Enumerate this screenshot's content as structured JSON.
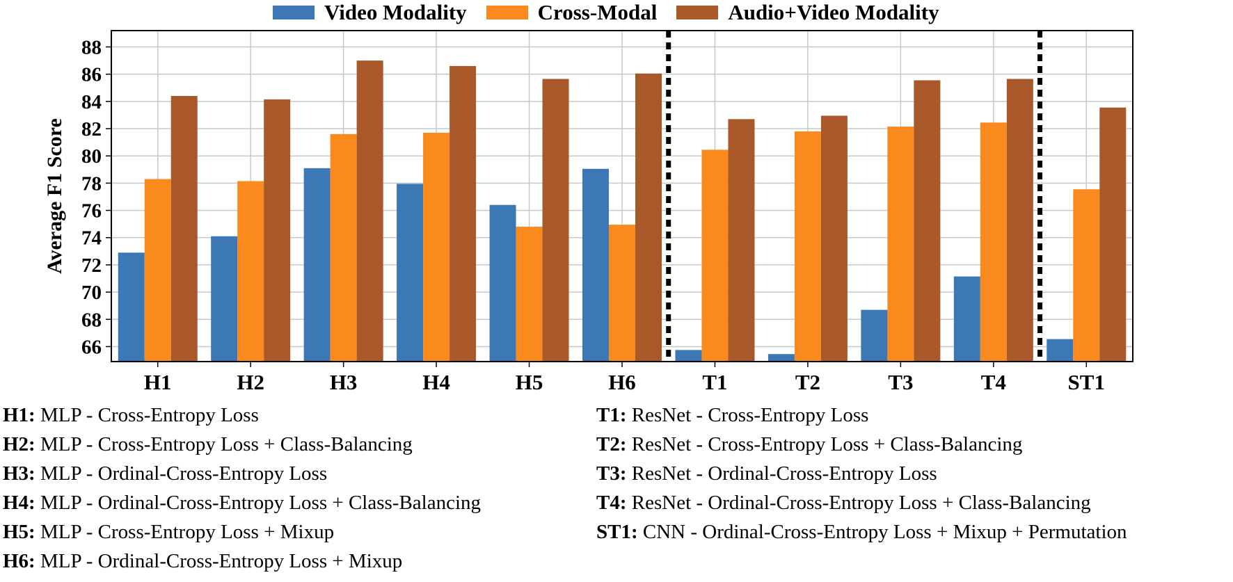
{
  "chart_data": {
    "type": "bar",
    "ylabel": "Average F1 Score",
    "xlabel": "",
    "ylim": [
      64.9,
      89.2
    ],
    "yticks": [
      66,
      68,
      70,
      72,
      74,
      76,
      78,
      80,
      82,
      84,
      86,
      88
    ],
    "grid": true,
    "legend_position": "top-center",
    "categories": [
      "H1",
      "H2",
      "H3",
      "H4",
      "H5",
      "H6",
      "T1",
      "T2",
      "T3",
      "T4",
      "ST1"
    ],
    "series": [
      {
        "name": "Video Modality",
        "color": "#3b78b5",
        "values": [
          72.9,
          74.1,
          79.1,
          77.95,
          76.4,
          79.05,
          65.75,
          65.45,
          68.7,
          71.15,
          66.55
        ]
      },
      {
        "name": "Cross-Modal",
        "color": "#fb8a1e",
        "values": [
          78.3,
          78.15,
          81.6,
          81.7,
          74.8,
          74.95,
          80.45,
          81.8,
          82.15,
          82.45,
          77.55
        ]
      },
      {
        "name": "Audio+Video Modality",
        "color": "#a9582a",
        "values": [
          84.4,
          84.15,
          87.0,
          86.6,
          85.65,
          86.05,
          82.7,
          82.95,
          85.55,
          85.65,
          83.55
        ]
      }
    ],
    "separators_after": [
      "H6",
      "T4"
    ]
  },
  "notes": {
    "left": [
      {
        "code": "H1:",
        "text": " MLP - Cross-Entropy Loss"
      },
      {
        "code": "H2:",
        "text": " MLP - Cross-Entropy Loss + Class-Balancing"
      },
      {
        "code": "H3:",
        "text": " MLP - Ordinal-Cross-Entropy Loss"
      },
      {
        "code": "H4:",
        "text": " MLP - Ordinal-Cross-Entropy Loss + Class-Balancing"
      },
      {
        "code": "H5:",
        "text": " MLP - Cross-Entropy Loss + Mixup"
      },
      {
        "code": "H6:",
        "text": " MLP - Ordinal-Cross-Entropy Loss + Mixup"
      }
    ],
    "right": [
      {
        "code": "T1:",
        "text": " ResNet - Cross-Entropy Loss"
      },
      {
        "code": "T2:",
        "text": " ResNet - Cross-Entropy Loss + Class-Balancing"
      },
      {
        "code": "T3:",
        "text": " ResNet - Ordinal-Cross-Entropy Loss"
      },
      {
        "code": "T4:",
        "text": " ResNet - Ordinal-Cross-Entropy Loss + Class-Balancing"
      },
      {
        "code": "ST1:",
        "text": " CNN - Ordinal-Cross-Entropy Loss + Mixup + Permutation"
      }
    ]
  }
}
